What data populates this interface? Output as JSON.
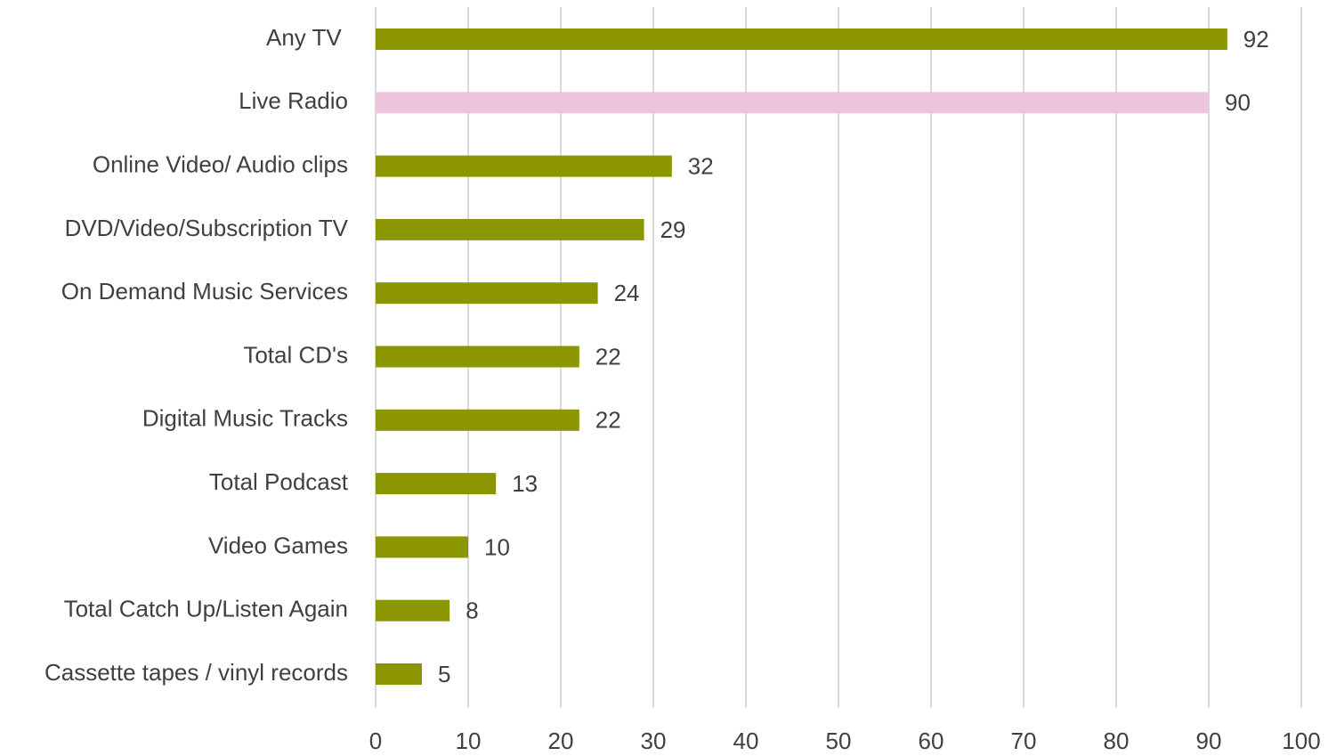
{
  "chart_data": {
    "type": "bar",
    "orientation": "horizontal",
    "categories": [
      "Any TV ",
      "Live Radio",
      "Online Video/ Audio clips",
      "DVD/Video/Subscription TV",
      "On Demand Music Services",
      "Total CD's",
      "Digital Music Tracks",
      "Total Podcast",
      "Video Games",
      "Total Catch Up/Listen Again",
      "Cassette tapes / vinyl records"
    ],
    "values": [
      92,
      90,
      32,
      29,
      24,
      22,
      22,
      13,
      10,
      8,
      5
    ],
    "colors": [
      "#8b9600",
      "#eec4dc",
      "#8b9600",
      "#8b9600",
      "#8b9600",
      "#8b9600",
      "#8b9600",
      "#8b9600",
      "#8b9600",
      "#8b9600",
      "#8b9600"
    ],
    "xlim": [
      0,
      100
    ],
    "xticks": [
      0,
      10,
      20,
      30,
      40,
      50,
      60,
      70,
      80,
      90,
      100
    ],
    "grid": true
  }
}
